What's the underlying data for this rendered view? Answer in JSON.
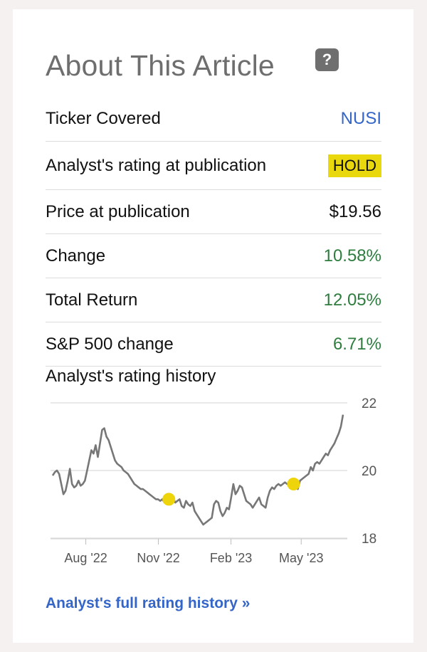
{
  "title": "About This Article",
  "help_icon": "?",
  "rows": [
    {
      "label": "Ticker Covered",
      "value": "NUSI"
    },
    {
      "label": "Analyst's rating at publication",
      "value": "HOLD"
    },
    {
      "label": "Price at publication",
      "value": "$19.56"
    },
    {
      "label": "Change",
      "value": "10.58%"
    },
    {
      "label": "Total Return",
      "value": "12.05%"
    },
    {
      "label": "S&P 500 change",
      "value": "6.71%"
    }
  ],
  "history_title": "Analyst's rating history",
  "full_link": "Analyst's full rating history »",
  "colors": {
    "line": "#777777",
    "marker": "#eed40b",
    "link": "#3465c8",
    "green": "#2e7d3f",
    "badge": "#ead80f"
  },
  "chart_data": {
    "type": "line",
    "ylim": [
      18,
      22
    ],
    "yticks": [
      "22",
      "20",
      "18"
    ],
    "xticks": [
      "Aug '22",
      "Nov '22",
      "Feb '23",
      "May '23"
    ],
    "series": [
      {
        "values": [
          19.85,
          19.95,
          20.0,
          19.9,
          19.6,
          19.3,
          19.4,
          19.7,
          20.05,
          19.6,
          19.5,
          19.55,
          19.7,
          19.55,
          19.6,
          19.7,
          20.0,
          20.3,
          20.6,
          20.5,
          20.75,
          20.4,
          20.8,
          21.2,
          21.25,
          21.0,
          20.9,
          20.7,
          20.5,
          20.3,
          20.2,
          20.15,
          20.1,
          20.0,
          19.95,
          19.9,
          19.8,
          19.7,
          19.6,
          19.55,
          19.5,
          19.45,
          19.45,
          19.4,
          19.35,
          19.3,
          19.25,
          19.2,
          19.15,
          19.15,
          19.1,
          19.15,
          19.05,
          19.1,
          19.15,
          19.0,
          19.2,
          19.05,
          19.1,
          19.15,
          18.95,
          18.9,
          19.1,
          19.0,
          18.95,
          19.05,
          18.8,
          18.7,
          18.6,
          18.5,
          18.4,
          18.45,
          18.5,
          18.55,
          18.6,
          19.0,
          19.1,
          19.05,
          18.8,
          18.65,
          18.75,
          18.9,
          18.85,
          19.2,
          19.6,
          19.3,
          19.4,
          19.55,
          19.5,
          19.3,
          19.1,
          19.05,
          19.0,
          18.9,
          19.0,
          19.1,
          19.2,
          19.0,
          18.95,
          18.9,
          19.2,
          19.4,
          19.5,
          19.45,
          19.55,
          19.6,
          19.55,
          19.6,
          19.65,
          19.6,
          19.55,
          19.62,
          19.58,
          19.5,
          19.45,
          19.7,
          19.75,
          19.8,
          19.85,
          19.9,
          20.1,
          20.0,
          20.2,
          20.25,
          20.2,
          20.3,
          20.4,
          20.5,
          20.45,
          20.6,
          20.7,
          20.8,
          20.95,
          21.1,
          21.3,
          21.65
        ],
        "start_date": "2022-06-20",
        "end_date": "2023-06-23"
      }
    ],
    "markers": [
      {
        "index": 54,
        "value": 19.15
      },
      {
        "index": 112,
        "value": 19.6
      }
    ],
    "grid": "horizontal"
  }
}
